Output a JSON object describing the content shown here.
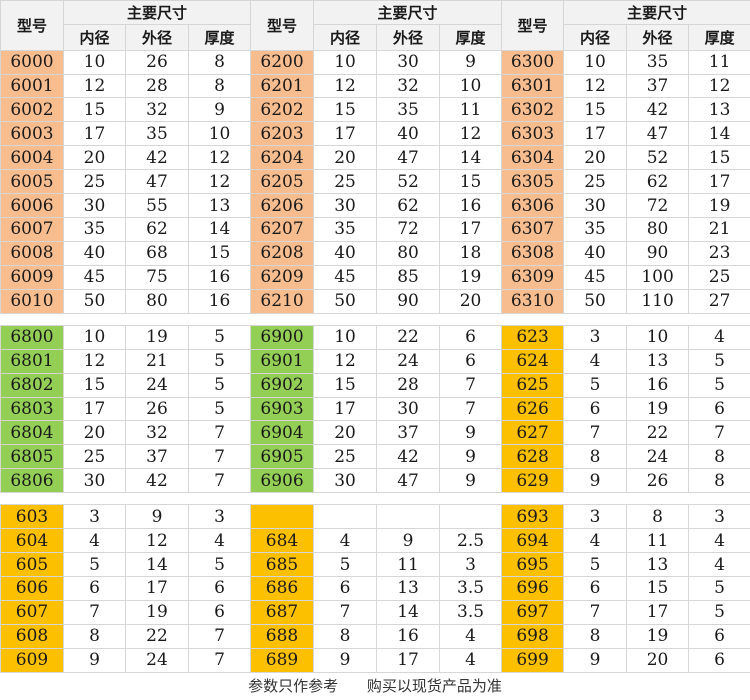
{
  "header": {
    "model_label": "型号",
    "main_size_label": "主要尺寸",
    "inner_label": "内径",
    "outer_label": "外径",
    "thickness_label": "厚度"
  },
  "colors": {
    "salmon": "#f8bd8f",
    "green": "#93cf54",
    "orange": "#fdc000"
  },
  "sections": [
    {
      "groups": [
        {
          "color": "salmon",
          "rows": [
            [
              "6000",
              "10",
              "26",
              "8"
            ],
            [
              "6001",
              "12",
              "28",
              "8"
            ],
            [
              "6002",
              "15",
              "32",
              "9"
            ],
            [
              "6003",
              "17",
              "35",
              "10"
            ],
            [
              "6004",
              "20",
              "42",
              "12"
            ],
            [
              "6005",
              "25",
              "47",
              "12"
            ],
            [
              "6006",
              "30",
              "55",
              "13"
            ],
            [
              "6007",
              "35",
              "62",
              "14"
            ],
            [
              "6008",
              "40",
              "68",
              "15"
            ],
            [
              "6009",
              "45",
              "75",
              "16"
            ],
            [
              "6010",
              "50",
              "80",
              "16"
            ]
          ]
        },
        {
          "color": "salmon",
          "rows": [
            [
              "6200",
              "10",
              "30",
              "9"
            ],
            [
              "6201",
              "12",
              "32",
              "10"
            ],
            [
              "6202",
              "15",
              "35",
              "11"
            ],
            [
              "6203",
              "17",
              "40",
              "12"
            ],
            [
              "6204",
              "20",
              "47",
              "14"
            ],
            [
              "6205",
              "25",
              "52",
              "15"
            ],
            [
              "6206",
              "30",
              "62",
              "16"
            ],
            [
              "6207",
              "35",
              "72",
              "17"
            ],
            [
              "6208",
              "40",
              "80",
              "18"
            ],
            [
              "6209",
              "45",
              "85",
              "19"
            ],
            [
              "6210",
              "50",
              "90",
              "20"
            ]
          ]
        },
        {
          "color": "salmon",
          "rows": [
            [
              "6300",
              "10",
              "35",
              "11"
            ],
            [
              "6301",
              "12",
              "37",
              "12"
            ],
            [
              "6302",
              "15",
              "42",
              "13"
            ],
            [
              "6303",
              "17",
              "47",
              "14"
            ],
            [
              "6304",
              "20",
              "52",
              "15"
            ],
            [
              "6305",
              "25",
              "62",
              "17"
            ],
            [
              "6306",
              "30",
              "72",
              "19"
            ],
            [
              "6307",
              "35",
              "80",
              "21"
            ],
            [
              "6308",
              "40",
              "90",
              "23"
            ],
            [
              "6309",
              "45",
              "100",
              "25"
            ],
            [
              "6310",
              "50",
              "110",
              "27"
            ]
          ]
        }
      ]
    },
    {
      "groups": [
        {
          "color": "green",
          "rows": [
            [
              "6800",
              "10",
              "19",
              "5"
            ],
            [
              "6801",
              "12",
              "21",
              "5"
            ],
            [
              "6802",
              "15",
              "24",
              "5"
            ],
            [
              "6803",
              "17",
              "26",
              "5"
            ],
            [
              "6804",
              "20",
              "32",
              "7"
            ],
            [
              "6805",
              "25",
              "37",
              "7"
            ],
            [
              "6806",
              "30",
              "42",
              "7"
            ]
          ]
        },
        {
          "color": "green",
          "rows": [
            [
              "6900",
              "10",
              "22",
              "6"
            ],
            [
              "6901",
              "12",
              "24",
              "6"
            ],
            [
              "6902",
              "15",
              "28",
              "7"
            ],
            [
              "6903",
              "17",
              "30",
              "7"
            ],
            [
              "6904",
              "20",
              "37",
              "9"
            ],
            [
              "6905",
              "25",
              "42",
              "9"
            ],
            [
              "6906",
              "30",
              "47",
              "9"
            ]
          ]
        },
        {
          "color": "orange",
          "rows": [
            [
              "623",
              "3",
              "10",
              "4"
            ],
            [
              "624",
              "4",
              "13",
              "5"
            ],
            [
              "625",
              "5",
              "16",
              "5"
            ],
            [
              "626",
              "6",
              "19",
              "6"
            ],
            [
              "627",
              "7",
              "22",
              "7"
            ],
            [
              "628",
              "8",
              "24",
              "8"
            ],
            [
              "629",
              "9",
              "26",
              "8"
            ]
          ]
        }
      ]
    },
    {
      "groups": [
        {
          "color": "orange",
          "rows": [
            [
              "603",
              "3",
              "9",
              "3"
            ],
            [
              "604",
              "4",
              "12",
              "4"
            ],
            [
              "605",
              "5",
              "14",
              "5"
            ],
            [
              "606",
              "6",
              "17",
              "6"
            ],
            [
              "607",
              "7",
              "19",
              "6"
            ],
            [
              "608",
              "8",
              "22",
              "7"
            ],
            [
              "609",
              "9",
              "24",
              "7"
            ]
          ]
        },
        {
          "color": "orange",
          "rows": [
            [
              "",
              "",
              "",
              ""
            ],
            [
              "684",
              "4",
              "9",
              "2.5"
            ],
            [
              "685",
              "5",
              "11",
              "3"
            ],
            [
              "686",
              "6",
              "13",
              "3.5"
            ],
            [
              "687",
              "7",
              "14",
              "3.5"
            ],
            [
              "688",
              "8",
              "16",
              "4"
            ],
            [
              "689",
              "9",
              "17",
              "4"
            ]
          ]
        },
        {
          "color": "orange",
          "rows": [
            [
              "693",
              "3",
              "8",
              "3"
            ],
            [
              "694",
              "4",
              "11",
              "4"
            ],
            [
              "695",
              "5",
              "13",
              "4"
            ],
            [
              "696",
              "6",
              "15",
              "5"
            ],
            [
              "697",
              "7",
              "17",
              "5"
            ],
            [
              "698",
              "8",
              "19",
              "6"
            ],
            [
              "699",
              "9",
              "20",
              "6"
            ]
          ]
        }
      ]
    }
  ],
  "footer": {
    "left": "参数只作参考",
    "right": "购买以现货产品为准"
  }
}
